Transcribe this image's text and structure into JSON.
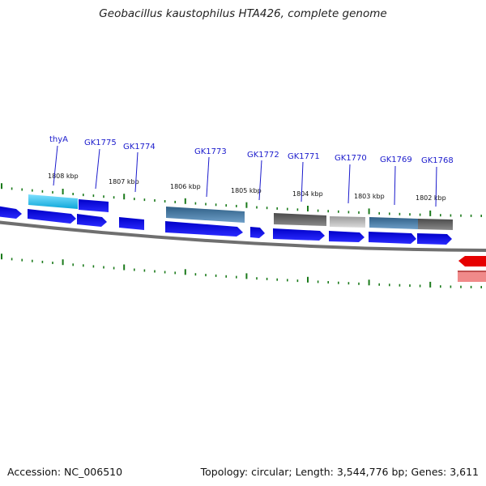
{
  "header": {
    "title": "Geobacillus kaustophilus HTA426, complete genome"
  },
  "footer": {
    "accession": "Accession: NC_006510",
    "topology": "Topology: circular; Length: 3,544,776 bp; Genes: 3,611"
  },
  "colors": {
    "cds_forward": "#0a0adf",
    "cds_reverse": "#e60000",
    "cds_reverse_light": "#f08a8a",
    "backbone": "#7d7d7d",
    "tick": "#1a7a1a",
    "label": "#1a1acc"
  },
  "genes": [
    {
      "name": "thyA"
    },
    {
      "name": "GK1775"
    },
    {
      "name": "GK1774"
    },
    {
      "name": "GK1773"
    },
    {
      "name": "GK1772"
    },
    {
      "name": "GK1771"
    },
    {
      "name": "GK1770"
    },
    {
      "name": "GK1769"
    },
    {
      "name": "GK1768"
    }
  ],
  "kbp_labels": [
    "1808 kbp",
    "1807 kbp",
    "1806 kbp",
    "1805 kbp",
    "1804 kbp",
    "1803 kbp",
    "1802 kbp"
  ]
}
